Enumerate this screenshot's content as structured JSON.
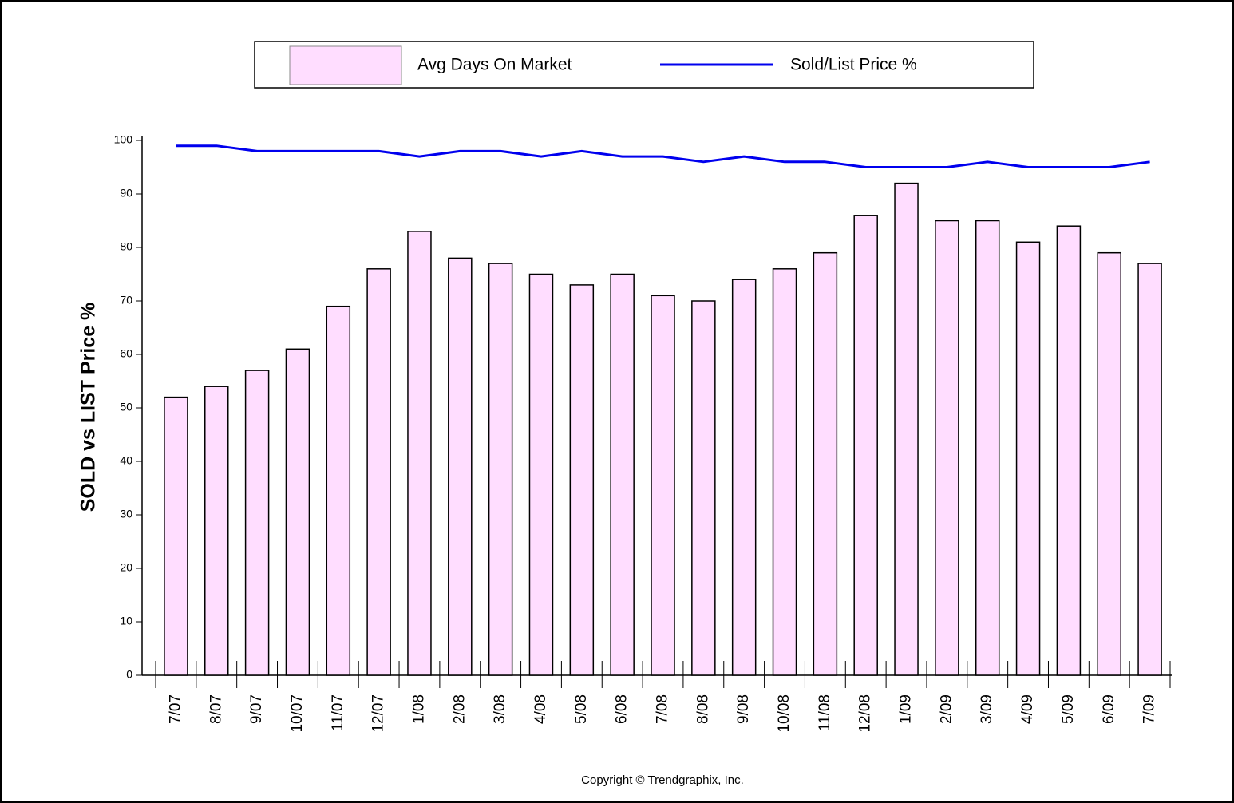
{
  "chart_data": {
    "type": "combo",
    "y_axis_label": "SOLD vs LIST Price %",
    "footer": "Copyright © Trendgraphix, Inc.",
    "categories": [
      "7/07",
      "8/07",
      "9/07",
      "10/07",
      "11/07",
      "12/07",
      "1/08",
      "2/08",
      "3/08",
      "4/08",
      "5/08",
      "6/08",
      "7/08",
      "8/08",
      "9/08",
      "10/08",
      "11/08",
      "12/08",
      "1/09",
      "2/09",
      "3/09",
      "4/09",
      "5/09",
      "6/09",
      "7/09"
    ],
    "series": [
      {
        "name": "Avg Days On Market",
        "type": "bar",
        "color": "#ffddff",
        "values": [
          52,
          54,
          57,
          61,
          69,
          76,
          83,
          78,
          77,
          75,
          73,
          75,
          71,
          70,
          74,
          76,
          79,
          86,
          92,
          85,
          85,
          81,
          84,
          79,
          77
        ]
      },
      {
        "name": "Sold/List Price %",
        "type": "line",
        "color": "#0000ee",
        "values": [
          99,
          99,
          98,
          98,
          98,
          98,
          97,
          98,
          98,
          97,
          98,
          97,
          97,
          96,
          97,
          96,
          96,
          95,
          95,
          95,
          96,
          95,
          95,
          95,
          96
        ]
      }
    ],
    "ylim": [
      0,
      100
    ],
    "yticks": [
      0,
      10,
      20,
      30,
      40,
      50,
      60,
      70,
      80,
      90,
      100
    ],
    "grid": false
  }
}
